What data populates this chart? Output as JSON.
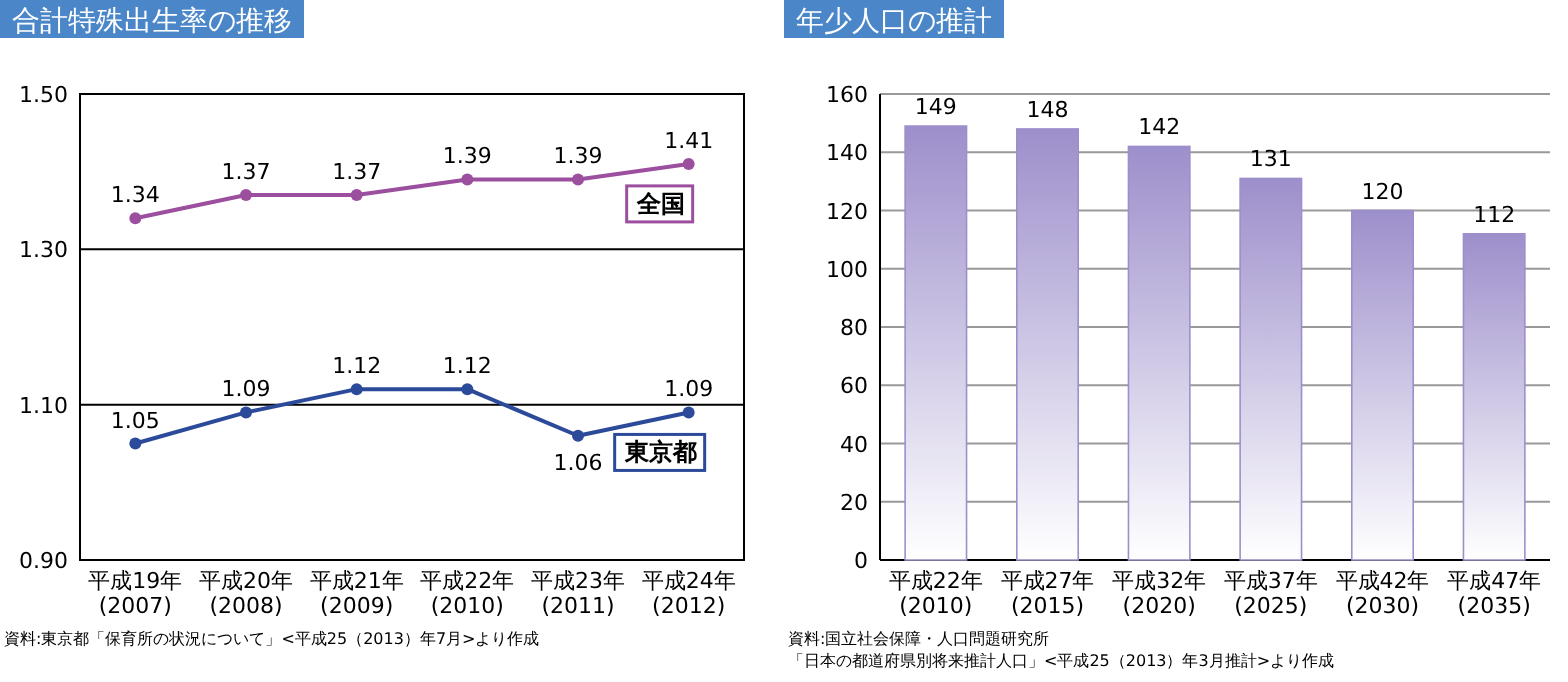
{
  "chart_data": [
    {
      "type": "line",
      "title": "合計特殊出生率の推移",
      "categories": [
        "平成19年\n(2007)",
        "平成20年\n(2008)",
        "平成21年\n(2009)",
        "平成22年\n(2010)",
        "平成23年\n(2011)",
        "平成24年\n(2012)"
      ],
      "series": [
        {
          "name": "全国",
          "color": "#9b4f9e",
          "values": [
            1.34,
            1.37,
            1.37,
            1.39,
            1.39,
            1.41
          ]
        },
        {
          "name": "東京都",
          "color": "#2c4a9a",
          "values": [
            1.05,
            1.09,
            1.12,
            1.12,
            1.06,
            1.09
          ]
        }
      ],
      "ylim": [
        0.9,
        1.5
      ],
      "yticks": [
        {
          "value": 0.9,
          "label": "0.90"
        },
        {
          "value": 1.1,
          "label": "1.10"
        },
        {
          "value": 1.3,
          "label": "1.30"
        },
        {
          "value": 1.5,
          "label": "1.50"
        }
      ],
      "grid": "y",
      "marker": "circle",
      "data_labels": true,
      "annotations": [
        "資料:東京都「保育所の状況について」<平成25（2013）年7月>より作成"
      ]
    },
    {
      "type": "bar",
      "title": "年少人口の推計",
      "categories": [
        "平成22年\n(2010)",
        "平成27年\n(2015)",
        "平成32年\n(2020)",
        "平成37年\n(2025)",
        "平成42年\n(2030)",
        "平成47年\n(2035)"
      ],
      "values": [
        149,
        148,
        142,
        131,
        120,
        112
      ],
      "color": "#9d8fcb",
      "ylim": [
        0,
        160
      ],
      "yticks": [
        0,
        20,
        40,
        60,
        80,
        100,
        120,
        140,
        160
      ],
      "grid": "y",
      "data_labels": true,
      "annotations": [
        "資料:国立社会保障・人口問題研究所",
        "「日本の都道府県別将来推計人口」<平成25（2013）年3月推計>より作成"
      ]
    }
  ]
}
